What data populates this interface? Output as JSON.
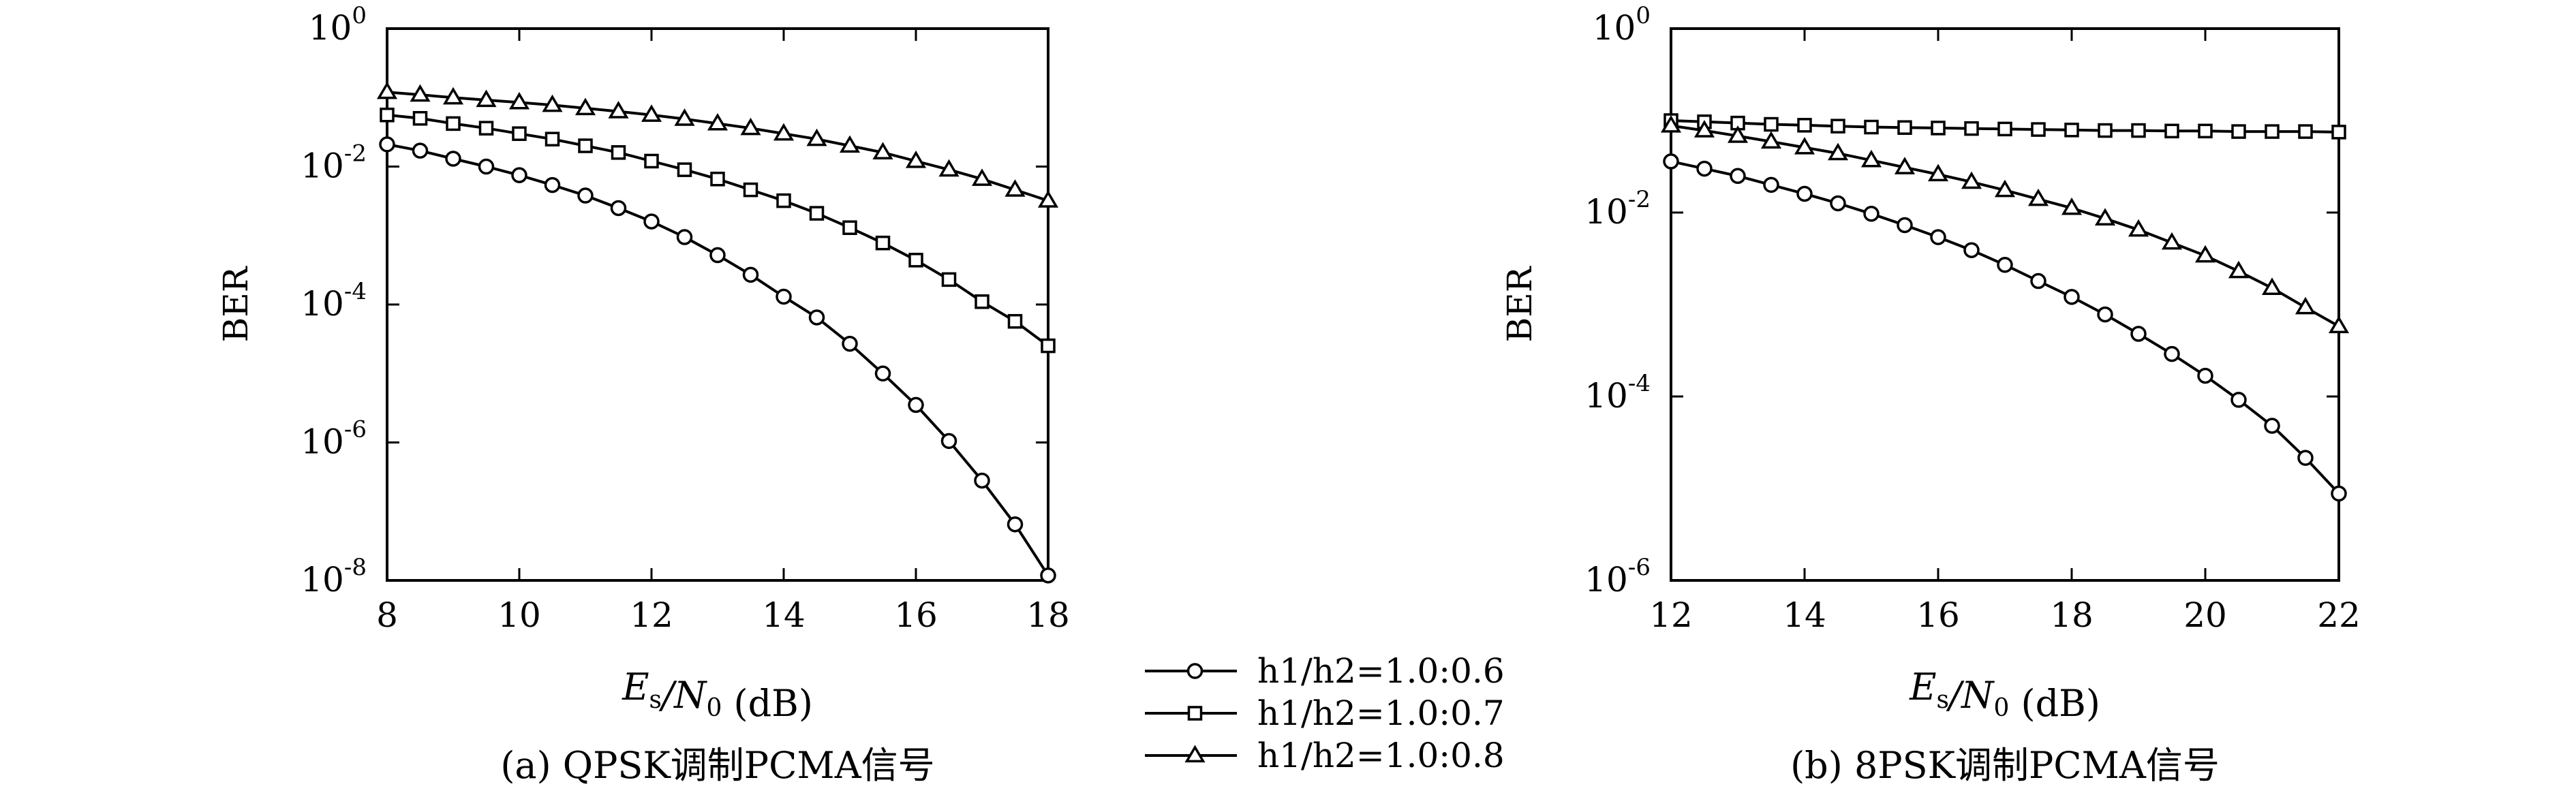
{
  "chart_data": [
    {
      "type": "line",
      "caption": "(a) QPSK调制PCMA信号",
      "xlabel": "E_s/N_0 (dB)",
      "ylabel": "BER",
      "xlim": [
        8,
        18
      ],
      "ylim_exp": [
        -8,
        0
      ],
      "ylog": true,
      "xticks": [
        8,
        10,
        12,
        14,
        16,
        18
      ],
      "yticks_exp": [
        0,
        -2,
        -4,
        -6,
        -8
      ],
      "x": [
        8,
        8.5,
        9,
        9.5,
        10,
        10.5,
        11,
        11.5,
        12,
        12.5,
        13,
        13.5,
        14,
        14.5,
        15,
        15.5,
        16,
        16.5,
        17,
        17.5,
        18
      ],
      "series": [
        {
          "name": "h1/h2=1.0:0.6",
          "marker": "circle",
          "values": [
            0.021,
            0.017,
            0.013,
            0.01,
            0.0075,
            0.0054,
            0.0038,
            0.0025,
            0.0016,
            0.00095,
            0.00052,
            0.00027,
            0.00013,
            6.5e-05,
            2.7e-05,
            1e-05,
            3.5e-06,
            1.05e-06,
            2.8e-07,
            6.5e-08,
            1.18e-08
          ]
        },
        {
          "name": "h1/h2=1.0:0.7",
          "marker": "square",
          "values": [
            0.056,
            0.05,
            0.042,
            0.036,
            0.03,
            0.025,
            0.02,
            0.016,
            0.012,
            0.009,
            0.0066,
            0.0046,
            0.0032,
            0.0021,
            0.0013,
            0.00078,
            0.00044,
            0.00023,
            0.00011,
            5.7e-05,
            2.52e-05
          ]
        },
        {
          "name": "h1/h2=1.0:0.8",
          "marker": "triangle",
          "values": [
            0.12,
            0.11,
            0.1,
            0.092,
            0.085,
            0.078,
            0.07,
            0.063,
            0.056,
            0.049,
            0.042,
            0.036,
            0.03,
            0.025,
            0.02,
            0.016,
            0.012,
            0.009,
            0.0066,
            0.0046,
            0.0032
          ]
        }
      ]
    },
    {
      "type": "line",
      "caption": "(b) 8PSK调制PCMA信号",
      "xlabel": "E_s/N_0 (dB)",
      "ylabel": "BER",
      "xlim": [
        12,
        22
      ],
      "ylim_exp": [
        -6,
        0
      ],
      "ylog": true,
      "xticks": [
        12,
        14,
        16,
        18,
        20,
        22
      ],
      "yticks_exp": [
        0,
        -2,
        -4,
        -6
      ],
      "x": [
        12,
        12.5,
        13,
        13.5,
        14,
        14.5,
        15,
        15.5,
        16,
        16.5,
        17,
        17.5,
        18,
        18.5,
        19,
        19.5,
        20,
        20.5,
        21,
        21.5,
        22
      ],
      "series": [
        {
          "name": "h1/h2=1.0:0.6",
          "marker": "circle",
          "values": [
            0.036,
            0.03,
            0.025,
            0.02,
            0.016,
            0.0126,
            0.0097,
            0.0073,
            0.0054,
            0.0039,
            0.0027,
            0.0018,
            0.00121,
            0.00078,
            0.00048,
            0.00029,
            0.000168,
            9.2e-05,
            4.8e-05,
            2.15e-05,
            8.8e-06
          ]
        },
        {
          "name": "h1/h2=1.0:0.7",
          "marker": "square",
          "values": [
            0.1,
            0.097,
            0.094,
            0.091,
            0.089,
            0.087,
            0.085,
            0.084,
            0.083,
            0.082,
            0.081,
            0.08,
            0.079,
            0.078,
            0.078,
            0.077,
            0.077,
            0.076,
            0.076,
            0.076,
            0.075
          ]
        },
        {
          "name": "h1/h2=1.0:0.8",
          "marker": "triangle",
          "values": [
            0.088,
            0.078,
            0.068,
            0.059,
            0.051,
            0.044,
            0.037,
            0.031,
            0.026,
            0.0215,
            0.0175,
            0.014,
            0.0112,
            0.0086,
            0.0065,
            0.0047,
            0.0034,
            0.0023,
            0.00151,
            0.00093,
            0.00058
          ]
        }
      ]
    }
  ],
  "legend": {
    "placement": "bottom-center",
    "entries": [
      {
        "marker": "circle",
        "label": "h1/h2=1.0:0.6"
      },
      {
        "marker": "square",
        "label": "h1/h2=1.0:0.7"
      },
      {
        "marker": "triangle",
        "label": "h1/h2=1.0:0.8"
      }
    ]
  }
}
